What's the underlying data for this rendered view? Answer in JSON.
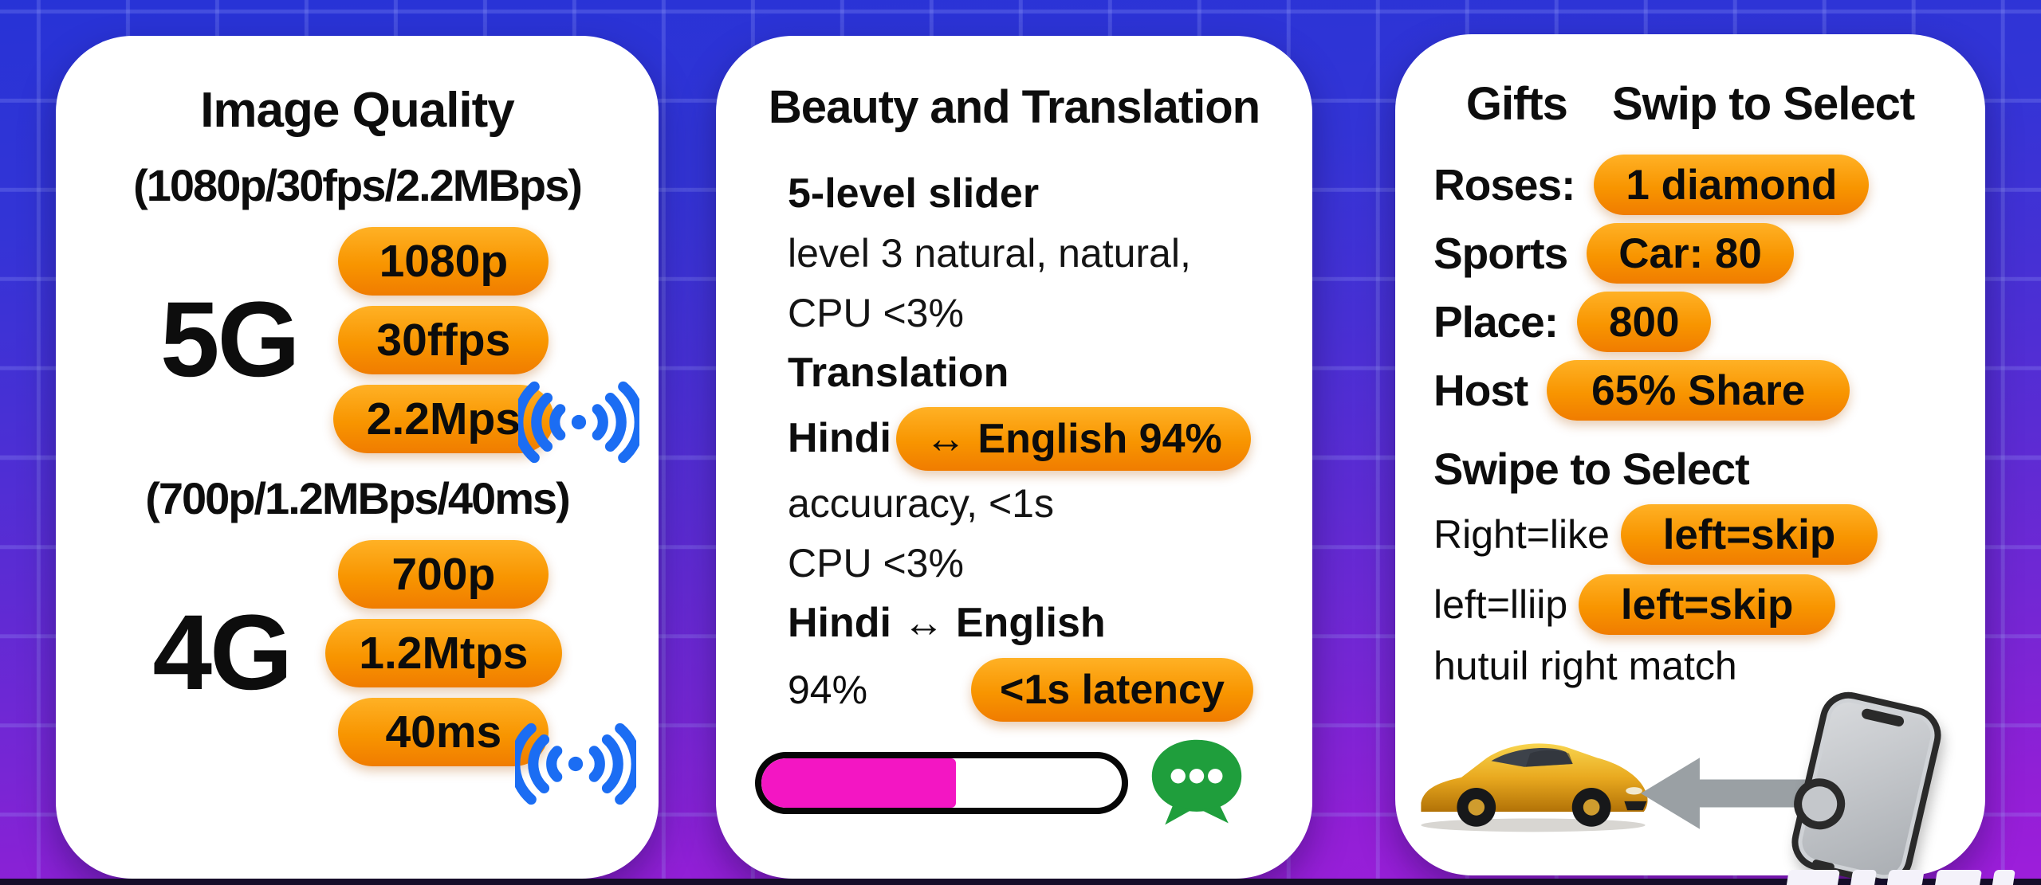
{
  "card1": {
    "title": "Image Quality",
    "groups": [
      {
        "subtitle": "(1080p/30fps/2.2MBps)",
        "network": "5G",
        "pills": [
          "1080p",
          "30ffps",
          "2.2Mps"
        ]
      },
      {
        "subtitle": "(700p/1.2MBps/40ms)",
        "network": "4G",
        "pills": [
          "700p",
          "1.2Mtps",
          "40ms"
        ]
      }
    ]
  },
  "card2": {
    "title": "Beauty and Translation",
    "slider_heading": "5-level slider",
    "slider_line1": "level 3 natural, natural,",
    "slider_line2": "CPU <3%",
    "translation_heading": "Translation",
    "hindi_label": "Hindi",
    "hindi_pill": "↔ English 94%",
    "accuracy_line": "accuuracy, <1s",
    "cpu_line": "CPU <3%",
    "pair_heading": "Hindi ↔ English",
    "accuracy_value": "94%",
    "latency_pill": "<1s latency",
    "progress_percent": 54
  },
  "card3": {
    "title_left": "Gifts",
    "title_right": "Swip to Select",
    "gift_rows": [
      {
        "label": "Roses:",
        "pill": "1 diamond"
      },
      {
        "label": "Sports",
        "pill": "Car: 80"
      },
      {
        "label": "Place:",
        "pill": "800"
      },
      {
        "label": "Host",
        "pill": "65% Share"
      }
    ],
    "swipe_heading": "Swipe to Select",
    "swipe_rows": [
      {
        "label": "Right=like",
        "pill": "left=skip"
      },
      {
        "label": "left=lliip",
        "pill": "left=skip"
      }
    ],
    "note": "hutuil right match"
  },
  "icons": {
    "signal": "signal-broadcast-icon",
    "chat": "chat-bubble-icon",
    "car": "gold-sports-car-image",
    "phone": "phone-icon",
    "arrow": "swipe-left-arrow-icon"
  },
  "colors": {
    "pill_top": "#FFB125",
    "pill_bottom": "#F07C00",
    "signal_blue": "#1B6DF3",
    "progress_magenta": "#F316C3",
    "chat_green": "#1F9E3C",
    "bg_top": "#2A36D8",
    "bg_bottom": "#9A22D8",
    "card": "#FFFFFF"
  }
}
